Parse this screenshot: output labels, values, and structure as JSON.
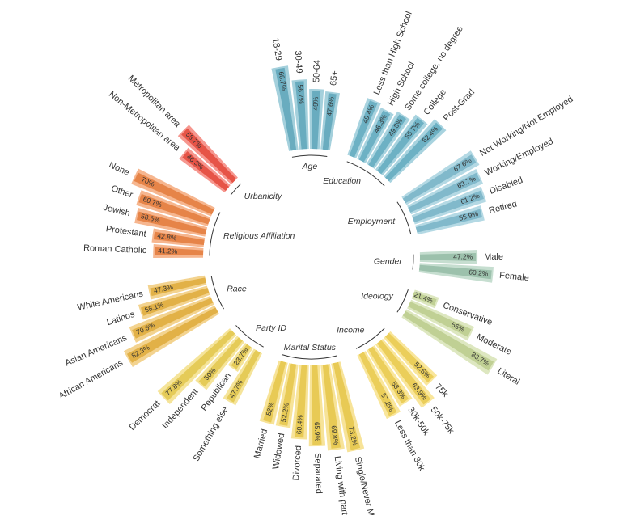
{
  "chart_data": {
    "type": "radial-bar",
    "value_range": [
      0,
      100
    ],
    "groups": [
      {
        "name": "Age",
        "color": "#6db3c7",
        "categories": [
          {
            "label": "18-29",
            "value": 68.7
          },
          {
            "label": "30-49",
            "value": 56.7
          },
          {
            "label": "50-64",
            "value": 49
          },
          {
            "label": "65+",
            "value": 47.6
          }
        ]
      },
      {
        "name": "Education",
        "color": "#72b8cc",
        "categories": [
          {
            "label": "Less than High School",
            "value": 49.4
          },
          {
            "label": "High School",
            "value": 46.3
          },
          {
            "label": "Some college, no degree",
            "value": 49.8
          },
          {
            "label": "College",
            "value": 55.7
          },
          {
            "label": "Post-Grad",
            "value": 62.4
          }
        ]
      },
      {
        "name": "Employment",
        "color": "#86c1d3",
        "categories": [
          {
            "label": "Not Working/Not Employed",
            "value": 67.6
          },
          {
            "label": "Working/Employed",
            "value": 63.7
          },
          {
            "label": "Disabled",
            "value": 61.2
          },
          {
            "label": "Retired",
            "value": 55.9
          }
        ]
      },
      {
        "name": "Gender",
        "color": "#a3c9b3",
        "categories": [
          {
            "label": "Male",
            "value": 47.2
          },
          {
            "label": "Female",
            "value": 60.2
          }
        ]
      },
      {
        "name": "Ideology",
        "color": "#c8d99a",
        "categories": [
          {
            "label": "Conservative",
            "value": 21.4
          },
          {
            "label": "Moderate",
            "value": 56
          },
          {
            "label": "Literal",
            "value": 83.7
          }
        ]
      },
      {
        "name": "Income",
        "color": "#f5d75e",
        "categories": [
          {
            "label": "75k",
            "value": 52.5
          },
          {
            "label": "50k-75k",
            "value": 63.9
          },
          {
            "label": "30k-50k",
            "value": 53.3
          },
          {
            "label": "Less than 30k",
            "value": 57.2
          }
        ]
      },
      {
        "name": "Marital Status",
        "color": "#f2d259",
        "categories": [
          {
            "label": "Single/Never Married",
            "value": 73.2
          },
          {
            "label": "Living with partner",
            "value": 69.8
          },
          {
            "label": "Separated",
            "value": 65.9
          },
          {
            "label": "Divorced",
            "value": 60.4
          },
          {
            "label": "Widowed",
            "value": 52.2
          },
          {
            "label": "Married",
            "value": 52
          }
        ]
      },
      {
        "name": "Party ID",
        "color": "#efd35c",
        "categories": [
          {
            "label": "Something else",
            "value": 47.7
          },
          {
            "label": "Republican",
            "value": 23.7
          },
          {
            "label": "Independent",
            "value": 50
          },
          {
            "label": "Democrat",
            "value": 77.8
          }
        ]
      },
      {
        "name": "Race",
        "color": "#ebb84a",
        "categories": [
          {
            "label": "African Americans",
            "value": 82.3
          },
          {
            "label": "Asian Americans",
            "value": 70.6
          },
          {
            "label": "Latinos",
            "value": 58.1
          },
          {
            "label": "White Americans",
            "value": 47.3
          }
        ]
      },
      {
        "name": "Religious Affiliation",
        "color": "#f08a4b",
        "categories": [
          {
            "label": "Roman Catholic",
            "value": 41.2
          },
          {
            "label": "Protestant",
            "value": 42.8
          },
          {
            "label": "Jewish",
            "value": 58.6
          },
          {
            "label": "Other",
            "value": 60.7
          },
          {
            "label": "None",
            "value": 70
          }
        ]
      },
      {
        "name": "Urbanicity",
        "color": "#f0584a",
        "categories": [
          {
            "label": "Non-Metropolitan area",
            "value": 46.3
          },
          {
            "label": "Metropolitan area",
            "value": 58.7
          }
        ]
      }
    ]
  }
}
